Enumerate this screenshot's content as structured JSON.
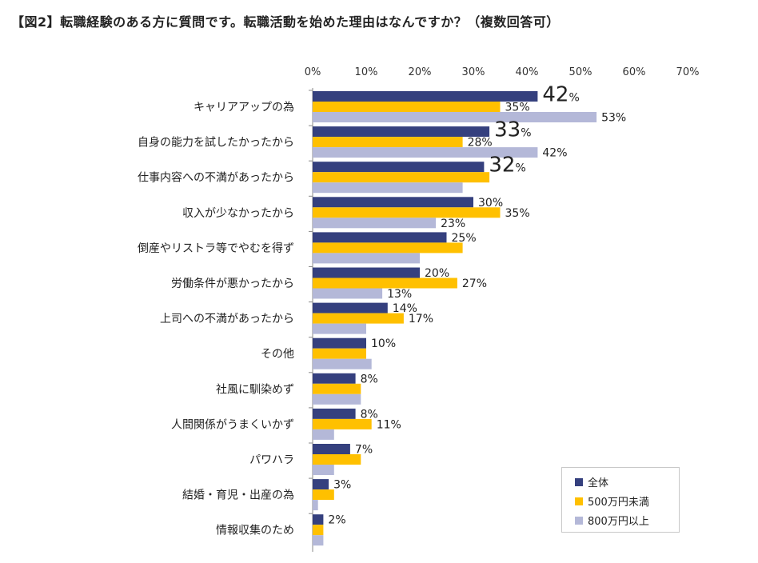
{
  "title": "【図2】転職経験のある方に質問です。転職活動を始めた理由はなんですか？（複数回答可）",
  "chart_data": {
    "type": "bar",
    "orientation": "horizontal",
    "xlim": [
      0,
      70
    ],
    "ticks": [
      "0%",
      "10%",
      "20%",
      "30%",
      "40%",
      "50%",
      "60%",
      "70%"
    ],
    "tick_values": [
      0,
      10,
      20,
      30,
      40,
      50,
      60,
      70
    ],
    "legend_position": "bottom-right",
    "categories": [
      "キャリアアップの為",
      "自身の能力を試したかったから",
      "仕事内容への不満があったから",
      "収入が少なかったから",
      "倒産やリストラ等でやむを得ず",
      "労働条件が悪かったから",
      "上司への不満があったから",
      "その他",
      "社風に馴染めず",
      "人間関係がうまくいかず",
      "パワハラ",
      "結婚・育児・出産の為",
      "情報収集のため"
    ],
    "series": [
      {
        "name": "全体",
        "color": "#35407e",
        "values": [
          42,
          33,
          32,
          30,
          25,
          20,
          14,
          10,
          8,
          8,
          7,
          3,
          2
        ]
      },
      {
        "name": "500万円未満",
        "color": "#ffc000",
        "values": [
          35,
          28,
          33,
          35,
          28,
          27,
          17,
          10,
          9,
          11,
          9,
          4,
          2
        ]
      },
      {
        "name": "800万円以上",
        "color": "#b4b8d8",
        "values": [
          53,
          42,
          28,
          23,
          20,
          13,
          10,
          11,
          9,
          4,
          4,
          1,
          2
        ]
      }
    ],
    "labels": [
      {
        "series": 0,
        "index": 0,
        "num": "42",
        "unit": "%",
        "big": true
      },
      {
        "series": 1,
        "index": 0,
        "num": "35",
        "unit": "%",
        "big": false
      },
      {
        "series": 2,
        "index": 0,
        "num": "53",
        "unit": "%",
        "big": false
      },
      {
        "series": 0,
        "index": 1,
        "num": "33",
        "unit": "%",
        "big": true
      },
      {
        "series": 1,
        "index": 1,
        "num": "28",
        "unit": "%",
        "big": false
      },
      {
        "series": 2,
        "index": 1,
        "num": "42",
        "unit": "%",
        "big": false
      },
      {
        "series": 0,
        "index": 2,
        "num": "32",
        "unit": "%",
        "big": true
      },
      {
        "series": 0,
        "index": 3,
        "num": "30",
        "unit": "%",
        "big": false
      },
      {
        "series": 1,
        "index": 3,
        "num": "35",
        "unit": "%",
        "big": false
      },
      {
        "series": 2,
        "index": 3,
        "num": "23",
        "unit": "%",
        "big": false
      },
      {
        "series": 0,
        "index": 4,
        "num": "25",
        "unit": "%",
        "big": false
      },
      {
        "series": 0,
        "index": 5,
        "num": "20",
        "unit": "%",
        "big": false
      },
      {
        "series": 1,
        "index": 5,
        "num": "27",
        "unit": "%",
        "big": false
      },
      {
        "series": 2,
        "index": 5,
        "num": "13",
        "unit": "%",
        "big": false
      },
      {
        "series": 0,
        "index": 6,
        "num": "14",
        "unit": "%",
        "big": false
      },
      {
        "series": 1,
        "index": 6,
        "num": "17",
        "unit": "%",
        "big": false
      },
      {
        "series": 0,
        "index": 7,
        "num": "10",
        "unit": "%",
        "big": false
      },
      {
        "series": 0,
        "index": 8,
        "num": "8",
        "unit": "%",
        "big": false
      },
      {
        "series": 0,
        "index": 9,
        "num": "8",
        "unit": "%",
        "big": false
      },
      {
        "series": 1,
        "index": 9,
        "num": "11",
        "unit": "%",
        "big": false
      },
      {
        "series": 0,
        "index": 10,
        "num": "7",
        "unit": "%",
        "big": false
      },
      {
        "series": 0,
        "index": 11,
        "num": "3",
        "unit": "%",
        "big": false
      },
      {
        "series": 0,
        "index": 12,
        "num": "2",
        "unit": "%",
        "big": false
      }
    ]
  }
}
